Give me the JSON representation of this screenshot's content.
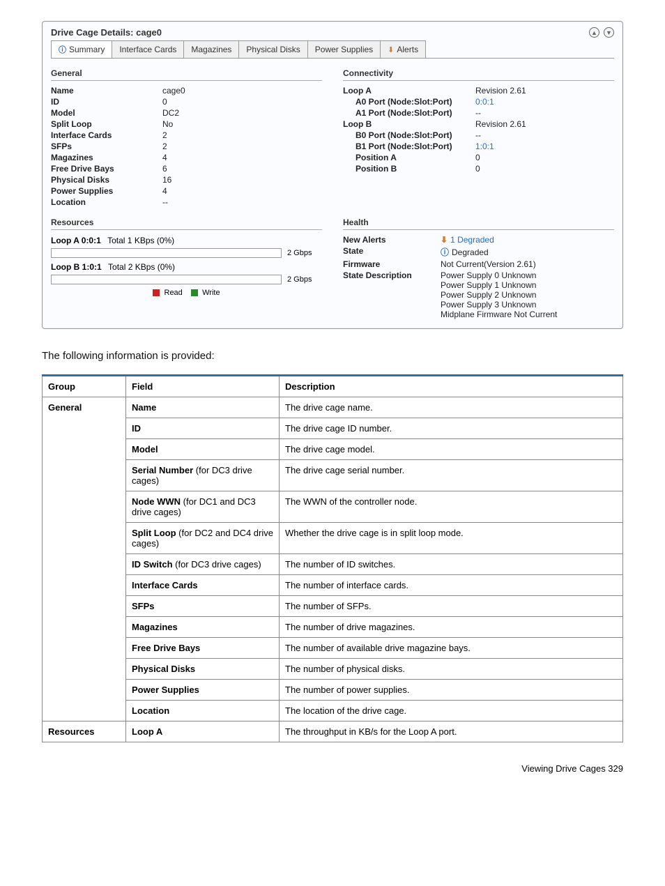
{
  "panel": {
    "title": "Drive Cage Details: cage0",
    "tabs": [
      {
        "label": "Summary",
        "active": true,
        "icon": "info"
      },
      {
        "label": "Interface Cards"
      },
      {
        "label": "Magazines"
      },
      {
        "label": "Physical Disks"
      },
      {
        "label": "Power Supplies"
      },
      {
        "label": "Alerts",
        "icon": "alert"
      }
    ],
    "general": {
      "header": "General",
      "rows": [
        {
          "k": "Name",
          "v": "cage0"
        },
        {
          "k": "ID",
          "v": "0"
        },
        {
          "k": "Model",
          "v": "DC2"
        },
        {
          "k": "Split Loop",
          "v": "No"
        },
        {
          "k": "Interface Cards",
          "v": "2"
        },
        {
          "k": "SFPs",
          "v": "2"
        },
        {
          "k": "Magazines",
          "v": "4"
        },
        {
          "k": "Free Drive Bays",
          "v": "6"
        },
        {
          "k": "Physical Disks",
          "v": "16"
        },
        {
          "k": "Power Supplies",
          "v": "4"
        },
        {
          "k": "Location",
          "v": "--"
        }
      ]
    },
    "connectivity": {
      "header": "Connectivity",
      "rows": [
        {
          "k": "Loop A",
          "v": "Revision 2.61"
        },
        {
          "k": "A0 Port (Node:Slot:Port)",
          "v": "0:0:1",
          "indent": true,
          "link": true
        },
        {
          "k": "A1 Port (Node:Slot:Port)",
          "v": "--",
          "indent": true
        },
        {
          "k": "Loop B",
          "v": "Revision 2.61"
        },
        {
          "k": "B0 Port (Node:Slot:Port)",
          "v": "--",
          "indent": true
        },
        {
          "k": "B1 Port (Node:Slot:Port)",
          "v": "1:0:1",
          "indent": true,
          "link": true
        },
        {
          "k": "Position A",
          "v": "0",
          "indent": true
        },
        {
          "k": "Position B",
          "v": "0",
          "indent": true
        }
      ]
    },
    "resources": {
      "header": "Resources",
      "loopA": {
        "label": "Loop A 0:0:1",
        "rate": "Total 1 KBps (0%)",
        "cap": "2 Gbps"
      },
      "loopB": {
        "label": "Loop B 1:0:1",
        "rate": "Total 2 KBps (0%)",
        "cap": "2 Gbps"
      },
      "legendRead": "Read",
      "legendWrite": "Write"
    },
    "health": {
      "header": "Health",
      "newAlertsLabel": "New Alerts",
      "newAlertsValue": "1 Degraded",
      "stateLabel": "State",
      "stateValue": "Degraded",
      "firmwareLabel": "Firmware",
      "firmwareValue": "Not Current(Version 2.61)",
      "stateDescLabel": "State Description",
      "stateDescLines": [
        "Power Supply 0 Unknown",
        "Power Supply 1 Unknown",
        "Power Supply 2 Unknown",
        "Power Supply 3 Unknown",
        "Midplane Firmware Not Current"
      ]
    }
  },
  "intro": "The following information is provided:",
  "descTable": {
    "columns": [
      "Group",
      "Field",
      "Description"
    ],
    "groups": [
      {
        "name": "General",
        "rows": [
          {
            "field": "Name",
            "desc": "The drive cage name."
          },
          {
            "field": "ID",
            "desc": "The drive cage ID number."
          },
          {
            "field": "Model",
            "desc": "The drive cage model."
          },
          {
            "field": "Serial Number (for DC3 drive cages)",
            "fieldBold": "Serial Number",
            "fieldRest": " (for DC3 drive cages)",
            "desc": "The drive cage serial number."
          },
          {
            "field": "Node WWN (for DC1 and DC3 drive cages)",
            "fieldBold": "Node WWN",
            "fieldRest": " (for DC1 and DC3 drive cages)",
            "desc": "The WWN of the controller node."
          },
          {
            "field": "Split Loop (for DC2 and DC4 drive cages)",
            "fieldBold": "Split Loop",
            "fieldRest": " (for DC2 and DC4 drive cages)",
            "desc": "Whether the drive cage is in split loop mode."
          },
          {
            "field": "ID Switch (for DC3 drive cages)",
            "fieldBold": "ID Switch",
            "fieldRest": " (for DC3 drive cages)",
            "desc": "The number of ID switches."
          },
          {
            "field": "Interface Cards",
            "desc": "The number of interface cards."
          },
          {
            "field": "SFPs",
            "desc": "The number of SFPs."
          },
          {
            "field": "Magazines",
            "desc": "The number of drive magazines."
          },
          {
            "field": "Free Drive Bays",
            "desc": "The number of available drive magazine bays."
          },
          {
            "field": "Physical Disks",
            "desc": "The number of physical disks."
          },
          {
            "field": "Power Supplies",
            "desc": "The number of power supplies."
          },
          {
            "field": "Location",
            "desc": "The location of the drive cage."
          }
        ]
      },
      {
        "name": "Resources",
        "rows": [
          {
            "field": "Loop A",
            "desc": "The throughput in KB/s for the Loop A port."
          }
        ]
      }
    ]
  },
  "footer": "Viewing Drive Cages   329"
}
